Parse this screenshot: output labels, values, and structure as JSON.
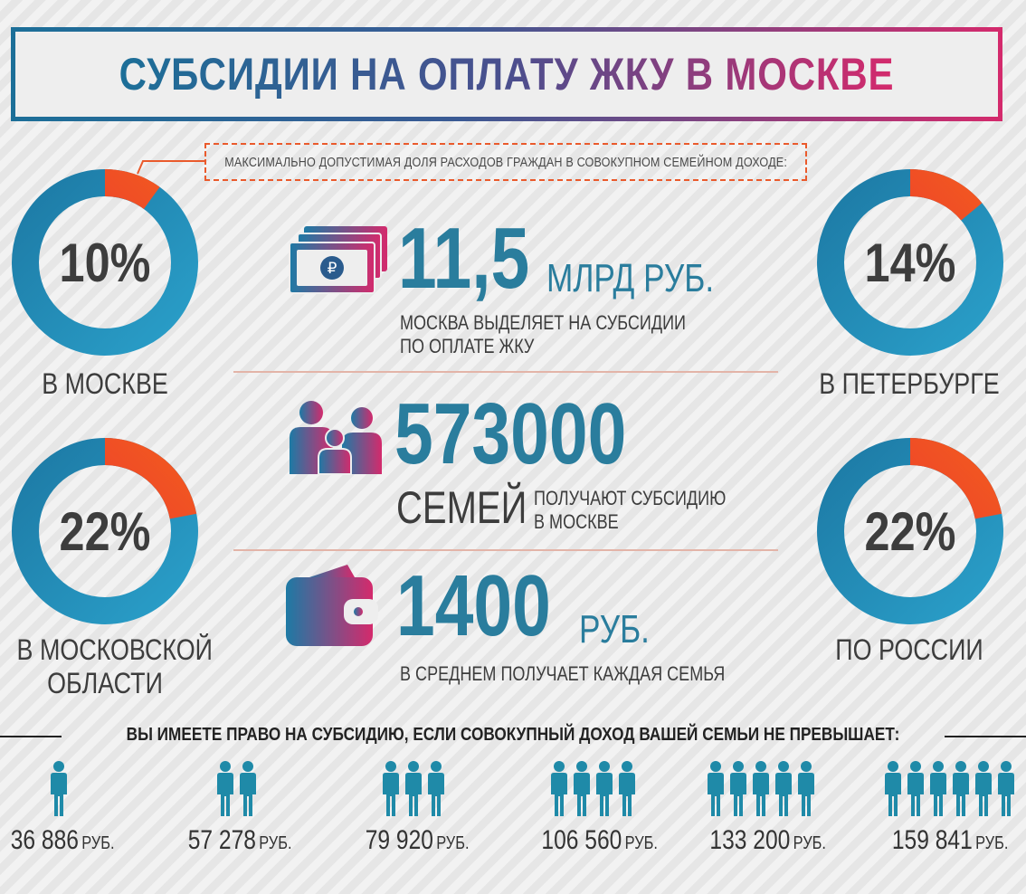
{
  "title": "СУБСИДИИ НА ОПЛАТУ ЖКУ В МОСКВЕ",
  "max_share_note": "МАКСИМАЛЬНО ДОПУСТИМАЯ ДОЛЯ РАСХОДОВ ГРАЖДАН В СОВОКУПНОМ СЕМЕЙНОМ ДОХОДЕ:",
  "colors": {
    "ring_blue": "#2a9fc9",
    "ring_blue_dark": "#1d7aa5",
    "ring_orange": "#f25a1f",
    "ring_red": "#e8263a",
    "accent_teal": "#2a7d9d",
    "accent_pink": "#d42a6c"
  },
  "regions": [
    {
      "value": "10%",
      "share": 10,
      "label": "В МОСКВЕ"
    },
    {
      "value": "14%",
      "share": 14,
      "label": "В ПЕТЕРБУРГЕ"
    },
    {
      "value": "22%",
      "share": 22,
      "label_line1": "В МОСКОВСКОЙ",
      "label_line2": "ОБЛАСТИ"
    },
    {
      "value": "22%",
      "share": 22,
      "label": "ПО РОССИИ"
    }
  ],
  "stats": {
    "budget": {
      "icon": "money-stack-icon",
      "number": "11,5",
      "unit": "МЛРД РУБ.",
      "desc_line1": "МОСКВА ВЫДЕЛЯЕТ НА СУБСИДИИ",
      "desc_line2": "ПО ОПЛАТЕ ЖКУ"
    },
    "families": {
      "icon": "family-icon",
      "number": "573000",
      "word": "СЕМЕЙ",
      "desc_line1": "ПОЛУЧАЮТ СУБСИДИЮ",
      "desc_line2": "В МОСКВЕ"
    },
    "average": {
      "icon": "wallet-icon",
      "number": "1400",
      "unit": "РУБ.",
      "desc": "В СРЕДНЕМ ПОЛУЧАЕТ КАЖДАЯ СЕМЬЯ"
    }
  },
  "criteria": {
    "title": "ВЫ ИМЕЕТЕ ПРАВО НА СУБСИДИЮ, ЕСЛИ СОВОКУПНЫЙ ДОХОД ВАШЕЙ СЕМЬИ НЕ ПРЕВЫШАЕТ:",
    "currency": "РУБ.",
    "tiers": [
      {
        "people": 1,
        "amount": "36 886"
      },
      {
        "people": 2,
        "amount": "57 278"
      },
      {
        "people": 3,
        "amount": "79 920"
      },
      {
        "people": 4,
        "amount": "106 560"
      },
      {
        "people": 5,
        "amount": "133 200"
      },
      {
        "people": 6,
        "amount": "159 841"
      }
    ]
  }
}
